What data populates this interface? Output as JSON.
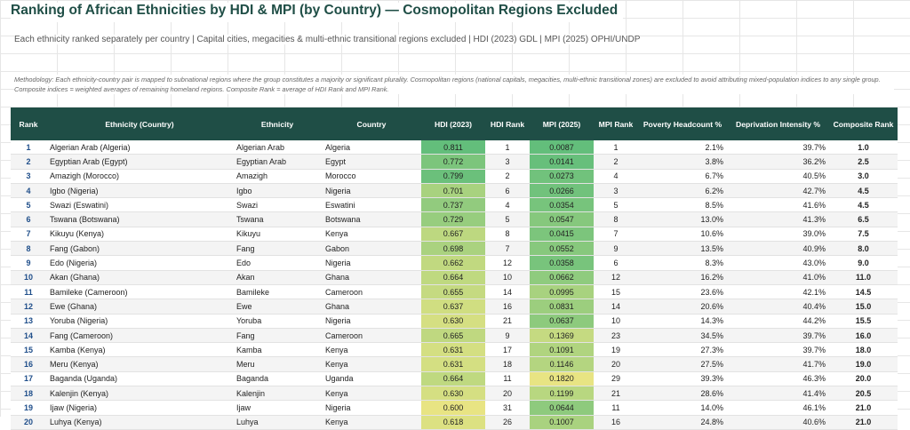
{
  "title": "Ranking of African Ethnicities by HDI & MPI (by Country) — Cosmopolitan Regions Excluded",
  "subtitle": "Each ethnicity ranked separately per country | Capital cities, megacities & multi-ethnic transitional regions excluded | HDI (2023) GDL | MPI (2025) OPHI/UNDP",
  "methodology": "Methodology: Each ethnicity-country pair is mapped to subnational regions where the group constitutes a majority or significant plurality. Cosmopolitan regions (national capitals, megacities, multi-ethnic transitional zones) are excluded to avoid attributing mixed-population indices to any single group. Composite indices = weighted averages of remaining homeland regions. Composite Rank = average of HDI Rank and MPI Rank.",
  "columns": [
    "Rank",
    "Ethnicity (Country)",
    "Ethnicity",
    "Country",
    "HDI (2023)",
    "HDI Rank",
    "MPI (2025)",
    "MPI Rank",
    "Poverty Headcount %",
    "Deprivation Intensity %",
    "Composite Rank"
  ],
  "rows": [
    {
      "rank": "1",
      "ec": "Algerian Arab (Algeria)",
      "eth": "Algerian Arab",
      "country": "Algeria",
      "hdi": "0.811",
      "hdi_rank": "1",
      "mpi": "0.0087",
      "mpi_rank": "1",
      "pov": "2.1%",
      "dep": "39.7%",
      "comp": "1.0"
    },
    {
      "rank": "2",
      "ec": "Egyptian Arab (Egypt)",
      "eth": "Egyptian Arab",
      "country": "Egypt",
      "hdi": "0.772",
      "hdi_rank": "3",
      "mpi": "0.0141",
      "mpi_rank": "2",
      "pov": "3.8%",
      "dep": "36.2%",
      "comp": "2.5"
    },
    {
      "rank": "3",
      "ec": "Amazigh (Morocco)",
      "eth": "Amazigh",
      "country": "Morocco",
      "hdi": "0.799",
      "hdi_rank": "2",
      "mpi": "0.0273",
      "mpi_rank": "4",
      "pov": "6.7%",
      "dep": "40.5%",
      "comp": "3.0"
    },
    {
      "rank": "4",
      "ec": "Igbo (Nigeria)",
      "eth": "Igbo",
      "country": "Nigeria",
      "hdi": "0.701",
      "hdi_rank": "6",
      "mpi": "0.0266",
      "mpi_rank": "3",
      "pov": "6.2%",
      "dep": "42.7%",
      "comp": "4.5"
    },
    {
      "rank": "5",
      "ec": "Swazi (Eswatini)",
      "eth": "Swazi",
      "country": "Eswatini",
      "hdi": "0.737",
      "hdi_rank": "4",
      "mpi": "0.0354",
      "mpi_rank": "5",
      "pov": "8.5%",
      "dep": "41.6%",
      "comp": "4.5"
    },
    {
      "rank": "6",
      "ec": "Tswana (Botswana)",
      "eth": "Tswana",
      "country": "Botswana",
      "hdi": "0.729",
      "hdi_rank": "5",
      "mpi": "0.0547",
      "mpi_rank": "8",
      "pov": "13.0%",
      "dep": "41.3%",
      "comp": "6.5"
    },
    {
      "rank": "7",
      "ec": "Kikuyu (Kenya)",
      "eth": "Kikuyu",
      "country": "Kenya",
      "hdi": "0.667",
      "hdi_rank": "8",
      "mpi": "0.0415",
      "mpi_rank": "7",
      "pov": "10.6%",
      "dep": "39.0%",
      "comp": "7.5"
    },
    {
      "rank": "8",
      "ec": "Fang (Gabon)",
      "eth": "Fang",
      "country": "Gabon",
      "hdi": "0.698",
      "hdi_rank": "7",
      "mpi": "0.0552",
      "mpi_rank": "9",
      "pov": "13.5%",
      "dep": "40.9%",
      "comp": "8.0"
    },
    {
      "rank": "9",
      "ec": "Edo (Nigeria)",
      "eth": "Edo",
      "country": "Nigeria",
      "hdi": "0.662",
      "hdi_rank": "12",
      "mpi": "0.0358",
      "mpi_rank": "6",
      "pov": "8.3%",
      "dep": "43.0%",
      "comp": "9.0"
    },
    {
      "rank": "10",
      "ec": "Akan (Ghana)",
      "eth": "Akan",
      "country": "Ghana",
      "hdi": "0.664",
      "hdi_rank": "10",
      "mpi": "0.0662",
      "mpi_rank": "12",
      "pov": "16.2%",
      "dep": "41.0%",
      "comp": "11.0"
    },
    {
      "rank": "11",
      "ec": "Bamileke (Cameroon)",
      "eth": "Bamileke",
      "country": "Cameroon",
      "hdi": "0.655",
      "hdi_rank": "14",
      "mpi": "0.0995",
      "mpi_rank": "15",
      "pov": "23.6%",
      "dep": "42.1%",
      "comp": "14.5"
    },
    {
      "rank": "12",
      "ec": "Ewe (Ghana)",
      "eth": "Ewe",
      "country": "Ghana",
      "hdi": "0.637",
      "hdi_rank": "16",
      "mpi": "0.0831",
      "mpi_rank": "14",
      "pov": "20.6%",
      "dep": "40.4%",
      "comp": "15.0"
    },
    {
      "rank": "13",
      "ec": "Yoruba (Nigeria)",
      "eth": "Yoruba",
      "country": "Nigeria",
      "hdi": "0.630",
      "hdi_rank": "21",
      "mpi": "0.0637",
      "mpi_rank": "10",
      "pov": "14.3%",
      "dep": "44.2%",
      "comp": "15.5"
    },
    {
      "rank": "14",
      "ec": "Fang (Cameroon)",
      "eth": "Fang",
      "country": "Cameroon",
      "hdi": "0.665",
      "hdi_rank": "9",
      "mpi": "0.1369",
      "mpi_rank": "23",
      "pov": "34.5%",
      "dep": "39.7%",
      "comp": "16.0"
    },
    {
      "rank": "15",
      "ec": "Kamba (Kenya)",
      "eth": "Kamba",
      "country": "Kenya",
      "hdi": "0.631",
      "hdi_rank": "17",
      "mpi": "0.1091",
      "mpi_rank": "19",
      "pov": "27.3%",
      "dep": "39.7%",
      "comp": "18.0"
    },
    {
      "rank": "16",
      "ec": "Meru (Kenya)",
      "eth": "Meru",
      "country": "Kenya",
      "hdi": "0.631",
      "hdi_rank": "18",
      "mpi": "0.1146",
      "mpi_rank": "20",
      "pov": "27.5%",
      "dep": "41.7%",
      "comp": "19.0"
    },
    {
      "rank": "17",
      "ec": "Baganda (Uganda)",
      "eth": "Baganda",
      "country": "Uganda",
      "hdi": "0.664",
      "hdi_rank": "11",
      "mpi": "0.1820",
      "mpi_rank": "29",
      "pov": "39.3%",
      "dep": "46.3%",
      "comp": "20.0"
    },
    {
      "rank": "18",
      "ec": "Kalenjin (Kenya)",
      "eth": "Kalenjin",
      "country": "Kenya",
      "hdi": "0.630",
      "hdi_rank": "20",
      "mpi": "0.1199",
      "mpi_rank": "21",
      "pov": "28.6%",
      "dep": "41.4%",
      "comp": "20.5"
    },
    {
      "rank": "19",
      "ec": "Ijaw (Nigeria)",
      "eth": "Ijaw",
      "country": "Nigeria",
      "hdi": "0.600",
      "hdi_rank": "31",
      "mpi": "0.0644",
      "mpi_rank": "11",
      "pov": "14.0%",
      "dep": "46.1%",
      "comp": "21.0"
    },
    {
      "rank": "20",
      "ec": "Luhya (Kenya)",
      "eth": "Luhya",
      "country": "Kenya",
      "hdi": "0.618",
      "hdi_rank": "26",
      "mpi": "0.1007",
      "mpi_rank": "16",
      "pov": "24.8%",
      "dep": "40.6%",
      "comp": "21.0"
    }
  ],
  "colors": {
    "header_bg": "#1f4e46",
    "header_text": "#ffffff",
    "title": "#1f4e46",
    "rank_text": "#1f4e8a",
    "heat_high": "#63be7b",
    "heat_low": "#ffeb84"
  }
}
